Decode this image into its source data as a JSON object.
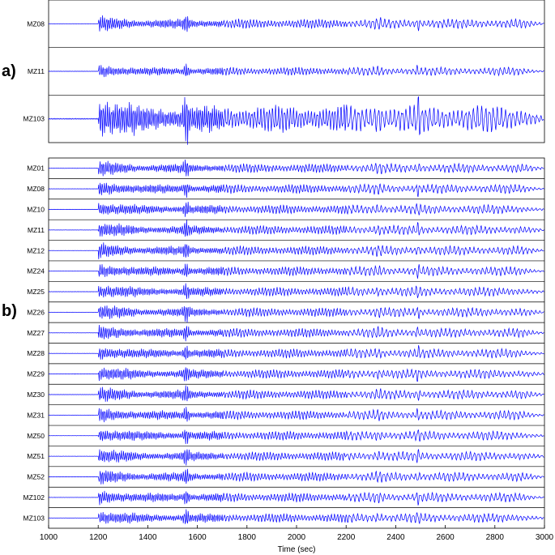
{
  "chart_data": [
    {
      "type": "line",
      "panel_label": "a)",
      "x_range": [
        1000,
        3000
      ],
      "series_color": "#0000ff",
      "stations": [
        "MZ08",
        "MZ11",
        "MZ103"
      ],
      "amplitude": [
        0.35,
        0.3,
        1.0
      ]
    },
    {
      "type": "line",
      "panel_label": "b)",
      "x_range": [
        1000,
        3000
      ],
      "series_color": "#0000ff",
      "stations": [
        "MZ01",
        "MZ08",
        "MZ10",
        "MZ11",
        "MZ12",
        "MZ24",
        "MZ25",
        "MZ26",
        "MZ27",
        "MZ28",
        "MZ29",
        "MZ30",
        "MZ31",
        "MZ50",
        "MZ51",
        "MZ52",
        "MZ102",
        "MZ103"
      ],
      "x_ticks": [
        1000,
        1200,
        1400,
        1600,
        1800,
        2000,
        2200,
        2400,
        2600,
        2800,
        3000
      ],
      "xlabel": "Time (sec)"
    }
  ]
}
